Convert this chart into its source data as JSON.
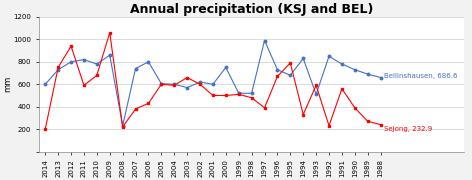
{
  "title": "Annual precipitation (KSJ and BEL)",
  "ylabel": "mm",
  "years": [
    2014,
    2013,
    2012,
    2011,
    2010,
    2009,
    2008,
    2007,
    2006,
    2005,
    2004,
    2003,
    2002,
    2001,
    2000,
    1999,
    1998,
    1997,
    1996,
    1995,
    1994,
    1993,
    1992,
    1991,
    1990,
    1989,
    1988
  ],
  "bellinshausen": [
    600,
    730,
    800,
    820,
    780,
    860,
    230,
    740,
    800,
    605,
    600,
    570,
    620,
    600,
    750,
    520,
    520,
    990,
    730,
    680,
    830,
    510,
    850,
    780,
    730,
    690,
    660
  ],
  "sejong": [
    200,
    750,
    940,
    590,
    680,
    1060,
    220,
    380,
    430,
    600,
    590,
    660,
    600,
    500,
    500,
    510,
    480,
    390,
    670,
    790,
    330,
    590,
    230,
    560,
    390,
    270,
    240
  ],
  "bel_label": "Bellinshausen, 686.6",
  "sej_label": "Sejong, 232.9",
  "bel_color": "#4472C4",
  "sej_color": "#FF0000",
  "ylim": [
    0,
    1200
  ],
  "yticks": [
    0,
    200,
    400,
    600,
    800,
    1000,
    1200
  ],
  "title_fontsize": 9,
  "label_fontsize": 6,
  "tick_fontsize": 5,
  "annot_fontsize": 5,
  "bg_color": "#f2f2f2",
  "plot_bg": "#ffffff"
}
